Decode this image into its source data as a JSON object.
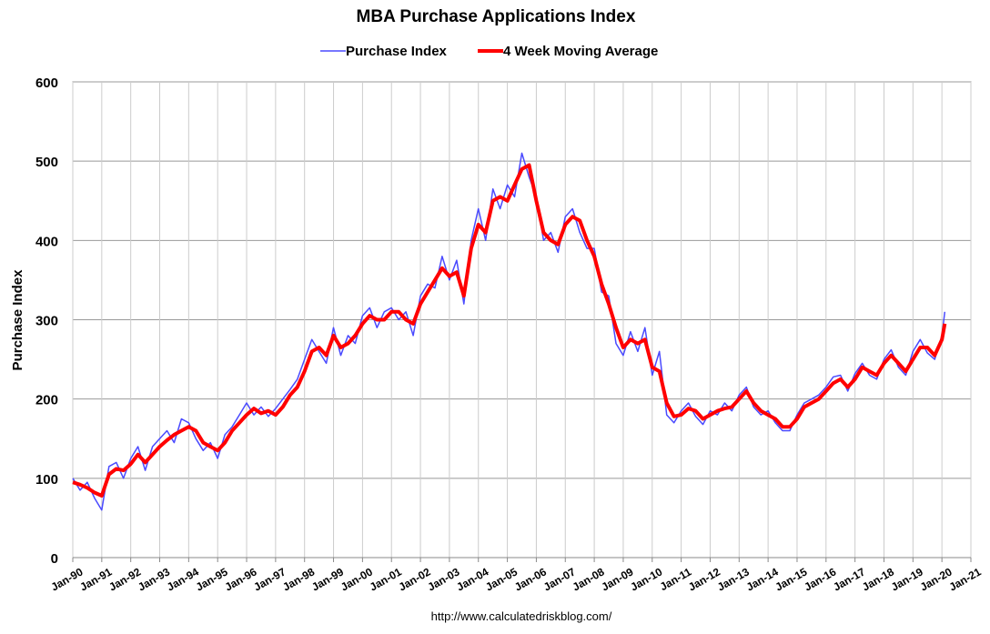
{
  "chart_data": {
    "type": "line",
    "title": "MBA Purchase Applications Index",
    "ylabel": "Purchase Index",
    "source": "http://www.calculatedriskblog.com/",
    "grid": true,
    "legend": "top",
    "xlim": [
      1990,
      2021
    ],
    "ylim": [
      0,
      600
    ],
    "yticks": [
      0,
      100,
      200,
      300,
      400,
      500,
      600
    ],
    "xticks": [
      {
        "value": 1990,
        "label": "Jan-90"
      },
      {
        "value": 1991,
        "label": "Jan-91"
      },
      {
        "value": 1992,
        "label": "Jan-92"
      },
      {
        "value": 1993,
        "label": "Jan-93"
      },
      {
        "value": 1994,
        "label": "Jan-94"
      },
      {
        "value": 1995,
        "label": "Jan-95"
      },
      {
        "value": 1996,
        "label": "Jan-96"
      },
      {
        "value": 1997,
        "label": "Jan-97"
      },
      {
        "value": 1998,
        "label": "Jan-98"
      },
      {
        "value": 1999,
        "label": "Jan-99"
      },
      {
        "value": 2000,
        "label": "Jan-00"
      },
      {
        "value": 2001,
        "label": "Jan-01"
      },
      {
        "value": 2002,
        "label": "Jan-02"
      },
      {
        "value": 2003,
        "label": "Jan-03"
      },
      {
        "value": 2004,
        "label": "Jan-04"
      },
      {
        "value": 2005,
        "label": "Jan-05"
      },
      {
        "value": 2006,
        "label": "Jan-06"
      },
      {
        "value": 2007,
        "label": "Jan-07"
      },
      {
        "value": 2008,
        "label": "Jan-08"
      },
      {
        "value": 2009,
        "label": "Jan-09"
      },
      {
        "value": 2010,
        "label": "Jan-10"
      },
      {
        "value": 2011,
        "label": "Jan-11"
      },
      {
        "value": 2012,
        "label": "Jan-12"
      },
      {
        "value": 2013,
        "label": "Jan-13"
      },
      {
        "value": 2014,
        "label": "Jan-14"
      },
      {
        "value": 2015,
        "label": "Jan-15"
      },
      {
        "value": 2016,
        "label": "Jan-16"
      },
      {
        "value": 2017,
        "label": "Jan-17"
      },
      {
        "value": 2018,
        "label": "Jan-18"
      },
      {
        "value": 2019,
        "label": "Jan-19"
      },
      {
        "value": 2020,
        "label": "Jan-20"
      },
      {
        "value": 2021,
        "label": "Jan-21"
      }
    ],
    "x": [
      1990,
      1990.25,
      1990.5,
      1990.75,
      1991,
      1991.25,
      1991.5,
      1991.75,
      1992,
      1992.25,
      1992.5,
      1992.75,
      1993,
      1993.25,
      1993.5,
      1993.75,
      1994,
      1994.25,
      1994.5,
      1994.75,
      1995,
      1995.25,
      1995.5,
      1995.75,
      1996,
      1996.25,
      1996.5,
      1996.75,
      1997,
      1997.25,
      1997.5,
      1997.75,
      1998,
      1998.25,
      1998.5,
      1998.75,
      1999,
      1999.25,
      1999.5,
      1999.75,
      2000,
      2000.25,
      2000.5,
      2000.75,
      2001,
      2001.25,
      2001.5,
      2001.75,
      2002,
      2002.25,
      2002.5,
      2002.75,
      2003,
      2003.25,
      2003.5,
      2003.75,
      2004,
      2004.25,
      2004.5,
      2004.75,
      2005,
      2005.25,
      2005.5,
      2005.75,
      2006,
      2006.25,
      2006.5,
      2006.75,
      2007,
      2007.25,
      2007.5,
      2007.75,
      2008,
      2008.25,
      2008.5,
      2008.75,
      2009,
      2009.25,
      2009.5,
      2009.75,
      2010,
      2010.25,
      2010.5,
      2010.75,
      2011,
      2011.25,
      2011.5,
      2011.75,
      2012,
      2012.25,
      2012.5,
      2012.75,
      2013,
      2013.25,
      2013.5,
      2013.75,
      2014,
      2014.25,
      2014.5,
      2014.75,
      2015,
      2015.25,
      2015.5,
      2015.75,
      2016,
      2016.25,
      2016.5,
      2016.75,
      2017,
      2017.25,
      2017.5,
      2017.75,
      2018,
      2018.25,
      2018.5,
      2018.75,
      2019,
      2019.25,
      2019.5,
      2019.75,
      2020,
      2020.1
    ],
    "series": [
      {
        "name": "Purchase Index",
        "color": "#4a4aff",
        "width": 1.5,
        "values": [
          100,
          85,
          95,
          75,
          60,
          115,
          120,
          100,
          125,
          140,
          110,
          140,
          150,
          160,
          145,
          175,
          170,
          150,
          135,
          145,
          125,
          155,
          165,
          180,
          195,
          180,
          190,
          178,
          188,
          200,
          212,
          225,
          250,
          275,
          260,
          245,
          290,
          255,
          280,
          270,
          305,
          315,
          290,
          310,
          315,
          300,
          310,
          280,
          330,
          345,
          340,
          380,
          350,
          375,
          320,
          400,
          440,
          400,
          465,
          440,
          470,
          455,
          510,
          480,
          455,
          400,
          410,
          385,
          430,
          440,
          410,
          390,
          390,
          335,
          330,
          270,
          255,
          285,
          260,
          290,
          230,
          260,
          180,
          170,
          185,
          195,
          178,
          168,
          185,
          180,
          195,
          185,
          205,
          215,
          190,
          180,
          185,
          170,
          160,
          160,
          180,
          195,
          200,
          205,
          215,
          228,
          230,
          210,
          232,
          245,
          230,
          225,
          250,
          262,
          240,
          230,
          260,
          275,
          258,
          250,
          280,
          310
        ]
      },
      {
        "name": "4 Week Moving Average",
        "color": "#ff0000",
        "width": 4,
        "values": [
          95,
          92,
          88,
          82,
          78,
          105,
          112,
          110,
          118,
          130,
          120,
          130,
          140,
          148,
          155,
          160,
          165,
          160,
          145,
          140,
          135,
          145,
          160,
          170,
          180,
          188,
          182,
          185,
          180,
          190,
          205,
          215,
          235,
          260,
          265,
          255,
          280,
          265,
          270,
          280,
          295,
          305,
          300,
          300,
          310,
          310,
          300,
          295,
          320,
          335,
          350,
          365,
          355,
          360,
          330,
          390,
          420,
          410,
          450,
          455,
          450,
          470,
          490,
          495,
          450,
          410,
          400,
          395,
          420,
          430,
          425,
          400,
          380,
          345,
          320,
          290,
          265,
          275,
          270,
          275,
          240,
          235,
          195,
          178,
          180,
          188,
          185,
          175,
          180,
          185,
          188,
          190,
          200,
          210,
          195,
          185,
          180,
          175,
          165,
          165,
          175,
          190,
          195,
          200,
          210,
          220,
          225,
          215,
          225,
          240,
          235,
          230,
          245,
          255,
          245,
          235,
          250,
          265,
          265,
          255,
          275,
          295
        ]
      }
    ]
  }
}
